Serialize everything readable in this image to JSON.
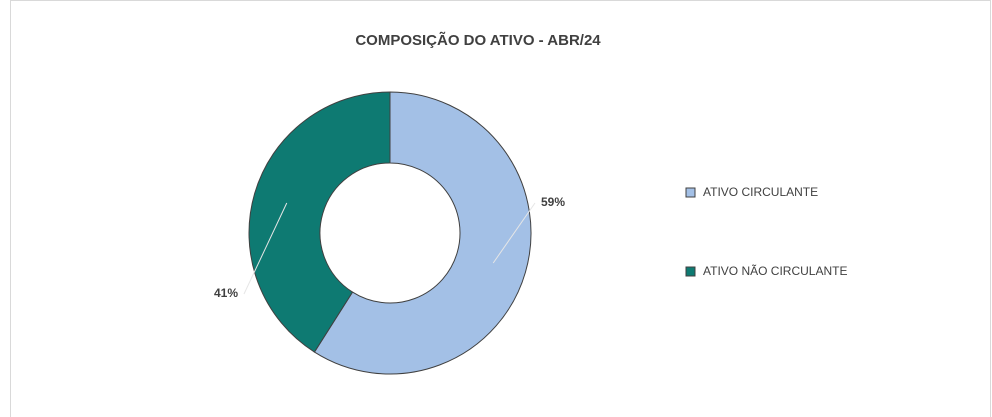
{
  "chart_data": {
    "type": "pie",
    "donut": true,
    "title": "COMPOSIÇÃO DO ATIVO - ABR/24",
    "categories": [
      "ATIVO CIRCULANTE",
      "ATIVO NÃO CIRCULANTE"
    ],
    "values": [
      59,
      41
    ],
    "value_labels": [
      "59%",
      "41%"
    ],
    "colors": [
      "#a3c0e6",
      "#0e7a72"
    ],
    "legend": "right"
  }
}
